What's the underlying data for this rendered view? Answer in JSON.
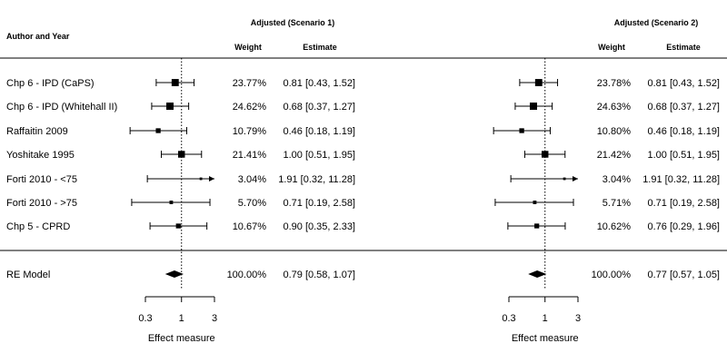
{
  "chart_data": {
    "type": "forest",
    "column_header": "Author and Year",
    "x_scale": "log",
    "xlabel": "Effect measure",
    "x_ticks": [
      0.3,
      1,
      3
    ],
    "x_tick_labels": [
      "0.3",
      "1",
      "3"
    ],
    "xlim": [
      0.3,
      3
    ],
    "reference_line": 1,
    "studies": [
      "Chp 6 - IPD (CaPS)",
      "Chp 6 - IPD (Whitehall II)",
      "Raffaitin 2009",
      "Yoshitake 1995",
      "Forti 2010 - <75",
      "Forti 2010 - >75",
      "Chp 5 - CPRD"
    ],
    "summary_label": "RE Model",
    "panels": [
      {
        "title": "Adjusted (Scenario 1)",
        "weight_header": "Weight",
        "estimate_header": "Estimate",
        "rows": [
          {
            "weight": "23.77%",
            "estimate": 0.81,
            "lower": 0.43,
            "upper": 1.52,
            "estimate_text": "0.81 [0.43,  1.52]"
          },
          {
            "weight": "24.62%",
            "estimate": 0.68,
            "lower": 0.37,
            "upper": 1.27,
            "estimate_text": "0.68 [0.37,  1.27]"
          },
          {
            "weight": "10.79%",
            "estimate": 0.46,
            "lower": 0.18,
            "upper": 1.19,
            "estimate_text": "0.46 [0.18,  1.19]"
          },
          {
            "weight": "21.41%",
            "estimate": 1.0,
            "lower": 0.51,
            "upper": 1.95,
            "estimate_text": "1.00 [0.51,  1.95]"
          },
          {
            "weight": "3.04%",
            "estimate": 1.91,
            "lower": 0.32,
            "upper": 11.28,
            "estimate_text": "1.91 [0.32, 11.28]"
          },
          {
            "weight": "5.70%",
            "estimate": 0.71,
            "lower": 0.19,
            "upper": 2.58,
            "estimate_text": "0.71 [0.19,  2.58]"
          },
          {
            "weight": "10.67%",
            "estimate": 0.9,
            "lower": 0.35,
            "upper": 2.33,
            "estimate_text": "0.90 [0.35,  2.33]"
          }
        ],
        "summary": {
          "weight": "100.00%",
          "estimate": 0.79,
          "lower": 0.58,
          "upper": 1.07,
          "estimate_text": "0.79 [0.58,  1.07]"
        }
      },
      {
        "title": "Adjusted (Scenario 2)",
        "weight_header": "Weight",
        "estimate_header": "Estimate",
        "rows": [
          {
            "weight": "23.78%",
            "estimate": 0.81,
            "lower": 0.43,
            "upper": 1.52,
            "estimate_text": "0.81 [0.43,  1.52]"
          },
          {
            "weight": "24.63%",
            "estimate": 0.68,
            "lower": 0.37,
            "upper": 1.27,
            "estimate_text": "0.68 [0.37,  1.27]"
          },
          {
            "weight": "10.80%",
            "estimate": 0.46,
            "lower": 0.18,
            "upper": 1.19,
            "estimate_text": "0.46 [0.18,  1.19]"
          },
          {
            "weight": "21.42%",
            "estimate": 1.0,
            "lower": 0.51,
            "upper": 1.95,
            "estimate_text": "1.00 [0.51,  1.95]"
          },
          {
            "weight": "3.04%",
            "estimate": 1.91,
            "lower": 0.32,
            "upper": 11.28,
            "estimate_text": "1.91 [0.32, 11.28]"
          },
          {
            "weight": "5.71%",
            "estimate": 0.71,
            "lower": 0.19,
            "upper": 2.58,
            "estimate_text": "0.71 [0.19,  2.58]"
          },
          {
            "weight": "10.62%",
            "estimate": 0.76,
            "lower": 0.29,
            "upper": 1.96,
            "estimate_text": "0.76 [0.29,  1.96]"
          }
        ],
        "summary": {
          "weight": "100.00%",
          "estimate": 0.77,
          "lower": 0.57,
          "upper": 1.05,
          "estimate_text": "0.77 [0.57,  1.05]"
        }
      }
    ]
  }
}
